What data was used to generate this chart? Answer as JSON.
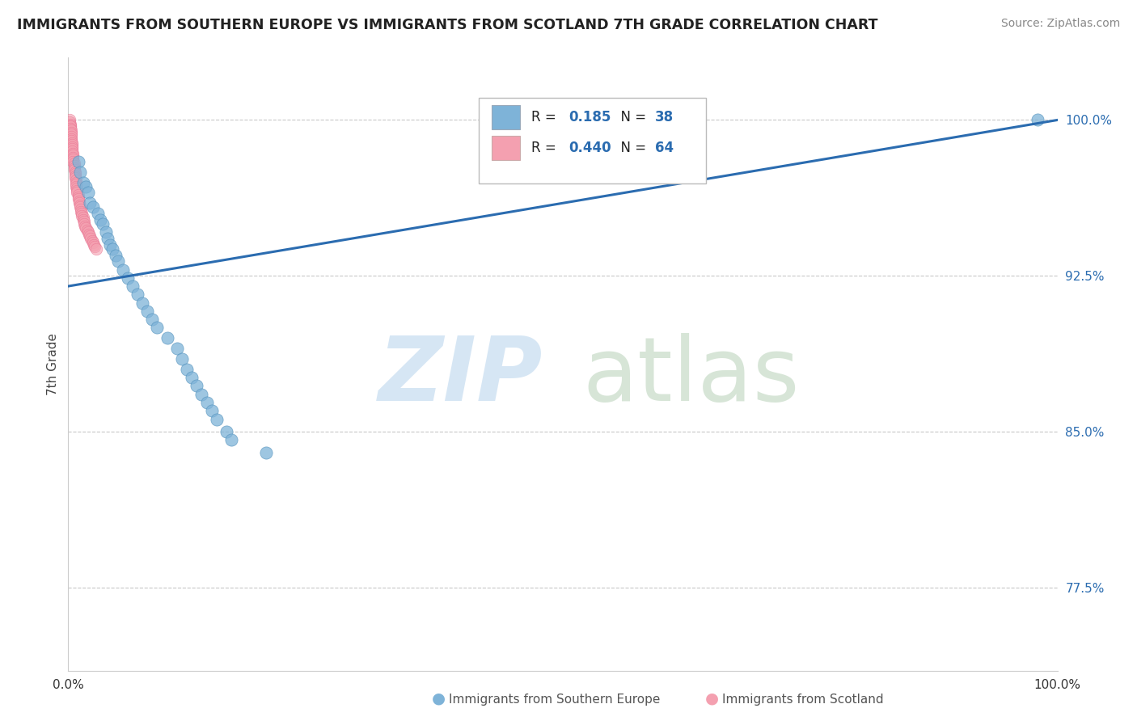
{
  "title": "IMMIGRANTS FROM SOUTHERN EUROPE VS IMMIGRANTS FROM SCOTLAND 7TH GRADE CORRELATION CHART",
  "source": "Source: ZipAtlas.com",
  "ylabel": "7th Grade",
  "ytick_vals": [
    0.775,
    0.85,
    0.925,
    1.0
  ],
  "ytick_labels": [
    "77.5%",
    "85.0%",
    "92.5%",
    "100.0%"
  ],
  "xtick_vals": [
    0.0,
    1.0
  ],
  "xtick_labels": [
    "0.0%",
    "100.0%"
  ],
  "xmin": 0.0,
  "xmax": 1.0,
  "ymin": 0.735,
  "ymax": 1.03,
  "color_blue": "#7EB3D8",
  "color_pink": "#F4A0B0",
  "color_pink_dark": "#E87090",
  "trendline_color": "#2B6CB0",
  "grid_color": "#C8C8C8",
  "blue_scatter_x": [
    0.01,
    0.012,
    0.015,
    0.018,
    0.02,
    0.022,
    0.025,
    0.03,
    0.032,
    0.035,
    0.038,
    0.04,
    0.042,
    0.045,
    0.048,
    0.05,
    0.055,
    0.06,
    0.065,
    0.07,
    0.075,
    0.08,
    0.085,
    0.09,
    0.1,
    0.11,
    0.115,
    0.12,
    0.125,
    0.13,
    0.135,
    0.14,
    0.145,
    0.15,
    0.16,
    0.165,
    0.2,
    0.98
  ],
  "blue_scatter_y": [
    0.98,
    0.975,
    0.97,
    0.968,
    0.965,
    0.96,
    0.958,
    0.955,
    0.952,
    0.95,
    0.946,
    0.943,
    0.94,
    0.938,
    0.935,
    0.932,
    0.928,
    0.924,
    0.92,
    0.916,
    0.912,
    0.908,
    0.904,
    0.9,
    0.895,
    0.89,
    0.885,
    0.88,
    0.876,
    0.872,
    0.868,
    0.864,
    0.86,
    0.856,
    0.85,
    0.846,
    0.84,
    1.0
  ],
  "pink_scatter_x": [
    0.001,
    0.001,
    0.002,
    0.002,
    0.002,
    0.002,
    0.003,
    0.003,
    0.003,
    0.003,
    0.003,
    0.003,
    0.004,
    0.004,
    0.004,
    0.004,
    0.004,
    0.005,
    0.005,
    0.005,
    0.005,
    0.005,
    0.006,
    0.006,
    0.006,
    0.006,
    0.007,
    0.007,
    0.007,
    0.007,
    0.008,
    0.008,
    0.008,
    0.008,
    0.009,
    0.009,
    0.009,
    0.01,
    0.01,
    0.01,
    0.011,
    0.011,
    0.012,
    0.012,
    0.013,
    0.013,
    0.014,
    0.014,
    0.015,
    0.015,
    0.016,
    0.016,
    0.017,
    0.018,
    0.019,
    0.02,
    0.021,
    0.022,
    0.023,
    0.024,
    0.025,
    0.026,
    0.027,
    0.028
  ],
  "pink_scatter_y": [
    1.0,
    0.999,
    0.998,
    0.997,
    0.997,
    0.996,
    0.995,
    0.994,
    0.993,
    0.992,
    0.991,
    0.99,
    0.989,
    0.988,
    0.987,
    0.986,
    0.985,
    0.984,
    0.983,
    0.982,
    0.981,
    0.98,
    0.979,
    0.978,
    0.977,
    0.976,
    0.975,
    0.974,
    0.973,
    0.972,
    0.971,
    0.97,
    0.969,
    0.968,
    0.967,
    0.966,
    0.965,
    0.964,
    0.963,
    0.962,
    0.961,
    0.96,
    0.959,
    0.958,
    0.957,
    0.956,
    0.955,
    0.954,
    0.953,
    0.952,
    0.951,
    0.95,
    0.949,
    0.948,
    0.947,
    0.946,
    0.945,
    0.944,
    0.943,
    0.942,
    0.941,
    0.94,
    0.939,
    0.938
  ],
  "trendline_x": [
    0.0,
    1.0
  ],
  "trendline_y": [
    0.92,
    1.0
  ],
  "watermark_zip_color": "#C8DFF0",
  "watermark_atlas_color": "#B8D4B8",
  "legend_r1_label": "R = ",
  "legend_r1_val": "0.185",
  "legend_n1_label": "N = ",
  "legend_n1_val": "38",
  "legend_r2_val": "0.440",
  "legend_n2_val": "64"
}
